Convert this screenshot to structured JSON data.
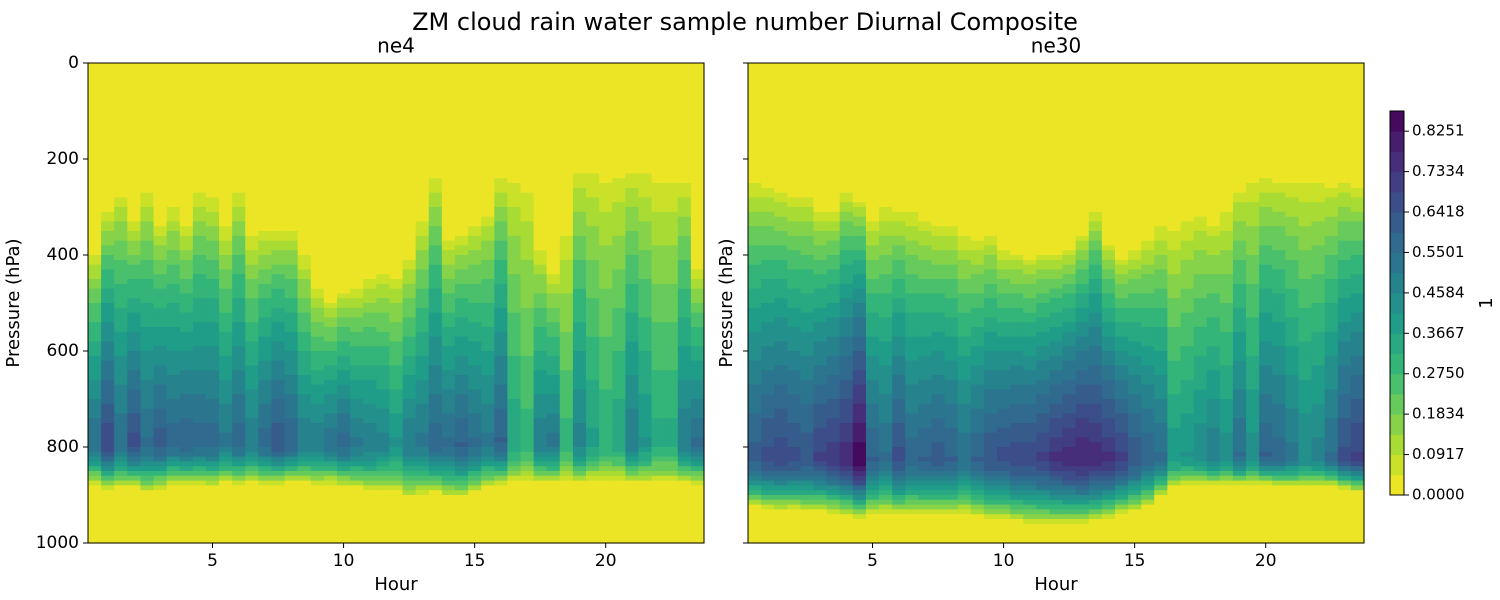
{
  "chart_data": {
    "type": "heatmap",
    "title": "ZM cloud rain water sample number Diurnal Composite",
    "colormap": "viridis_r",
    "panels": [
      {
        "title": "ne4",
        "xlabel": "Hour",
        "ylabel": "Pressure (hPa)",
        "xlim": [
          0.25,
          23.75
        ],
        "ylim": [
          1000,
          0
        ],
        "xticks": [
          5,
          10,
          15,
          20
        ],
        "yticks": [
          0,
          200,
          400,
          600,
          800,
          1000
        ],
        "hours": [
          0.5,
          1.0,
          1.5,
          2.0,
          2.5,
          3.0,
          3.5,
          4.0,
          4.5,
          5.0,
          5.5,
          6.0,
          6.5,
          7.0,
          7.5,
          8.0,
          8.5,
          9.0,
          9.5,
          10.0,
          10.5,
          11.0,
          11.5,
          12.0,
          12.5,
          13.0,
          13.5,
          14.0,
          14.5,
          15.0,
          15.5,
          16.0,
          16.5,
          17.0,
          17.5,
          18.0,
          18.5,
          19.0,
          19.5,
          20.0,
          20.5,
          21.0,
          21.5,
          22.0,
          22.5,
          23.0,
          23.5
        ],
        "cloud_top_hPa": [
          390,
          300,
          260,
          320,
          260,
          330,
          290,
          330,
          260,
          270,
          330,
          260,
          350,
          340,
          340,
          340,
          390,
          460,
          490,
          470,
          460,
          440,
          430,
          430,
          400,
          320,
          230,
          360,
          350,
          330,
          300,
          230,
          220,
          230,
          380,
          430,
          330,
          210,
          200,
          210,
          210,
          210,
          210,
          220,
          220,
          230,
          420
        ],
        "peak_value": [
          0.55,
          0.68,
          0.55,
          0.66,
          0.56,
          0.62,
          0.58,
          0.6,
          0.58,
          0.58,
          0.52,
          0.58,
          0.5,
          0.58,
          0.64,
          0.6,
          0.5,
          0.5,
          0.54,
          0.58,
          0.52,
          0.5,
          0.48,
          0.42,
          0.5,
          0.52,
          0.58,
          0.56,
          0.6,
          0.56,
          0.52,
          0.6,
          0.36,
          0.3,
          0.5,
          0.52,
          0.3,
          0.48,
          0.38,
          0.32,
          0.36,
          0.5,
          0.42,
          0.34,
          0.34,
          0.5,
          0.56
        ],
        "peak_level_hPa": 790,
        "cloud_base_hPa": [
          880,
          890,
          890,
          885,
          900,
          890,
          880,
          880,
          880,
          885,
          880,
          880,
          880,
          880,
          880,
          875,
          880,
          885,
          880,
          885,
          890,
          895,
          895,
          900,
          910,
          905,
          900,
          910,
          910,
          900,
          890,
          880,
          880,
          880,
          880,
          880,
          880,
          880,
          875,
          880,
          875,
          880,
          880,
          880,
          880,
          880,
          880
        ]
      },
      {
        "title": "ne30",
        "xlabel": "Hour",
        "ylabel": "Pressure (hPa)",
        "xlim": [
          0.25,
          23.75
        ],
        "ylim": [
          1000,
          0
        ],
        "xticks": [
          5,
          10,
          15,
          20
        ],
        "yticks": [
          0,
          200,
          400,
          600,
          800,
          1000
        ],
        "hours": [
          0.5,
          1.0,
          1.5,
          2.0,
          2.5,
          3.0,
          3.5,
          4.0,
          4.5,
          5.0,
          5.5,
          6.0,
          6.5,
          7.0,
          7.5,
          8.0,
          8.5,
          9.0,
          9.5,
          10.0,
          10.5,
          11.0,
          11.5,
          12.0,
          12.5,
          13.0,
          13.5,
          14.0,
          14.5,
          15.0,
          15.5,
          16.0,
          16.5,
          17.0,
          17.5,
          18.0,
          18.5,
          19.0,
          19.5,
          20.0,
          20.5,
          21.0,
          21.5,
          22.0,
          22.5,
          23.0,
          23.5
        ],
        "cloud_top_hPa": [
          240,
          250,
          260,
          270,
          270,
          300,
          300,
          260,
          280,
          320,
          290,
          300,
          300,
          320,
          330,
          330,
          350,
          360,
          350,
          380,
          390,
          400,
          390,
          390,
          380,
          350,
          300,
          370,
          400,
          380,
          360,
          330,
          330,
          310,
          300,
          320,
          290,
          250,
          230,
          230,
          230,
          230,
          230,
          230,
          240,
          240,
          250
        ],
        "peak_value": [
          0.62,
          0.66,
          0.68,
          0.66,
          0.64,
          0.7,
          0.72,
          0.76,
          0.86,
          0.6,
          0.56,
          0.66,
          0.58,
          0.6,
          0.62,
          0.6,
          0.55,
          0.6,
          0.64,
          0.66,
          0.68,
          0.68,
          0.7,
          0.74,
          0.76,
          0.78,
          0.76,
          0.74,
          0.7,
          0.64,
          0.6,
          0.56,
          0.4,
          0.42,
          0.46,
          0.5,
          0.44,
          0.56,
          0.44,
          0.6,
          0.58,
          0.52,
          0.46,
          0.48,
          0.56,
          0.66,
          0.7
        ],
        "peak_level_hPa": 820,
        "cloud_base_hPa": [
          930,
          935,
          935,
          935,
          940,
          935,
          940,
          945,
          950,
          945,
          945,
          945,
          945,
          945,
          945,
          945,
          945,
          950,
          955,
          955,
          960,
          965,
          965,
          965,
          965,
          965,
          960,
          955,
          945,
          940,
          930,
          905,
          890,
          880,
          880,
          880,
          880,
          880,
          880,
          880,
          885,
          885,
          885,
          885,
          885,
          890,
          895
        ]
      }
    ],
    "colorbar": {
      "label": "1",
      "min": 0.0,
      "max": 0.8709,
      "levels": 19,
      "ticks": [
        0.0,
        0.0917,
        0.1834,
        0.275,
        0.3667,
        0.4584,
        0.5501,
        0.6418,
        0.7334,
        0.8251
      ],
      "tick_labels": [
        "0.0000",
        "0.0917",
        "0.1834",
        "0.2750",
        "0.3667",
        "0.4584",
        "0.5501",
        "0.6418",
        "0.7334",
        "0.8251"
      ]
    }
  }
}
